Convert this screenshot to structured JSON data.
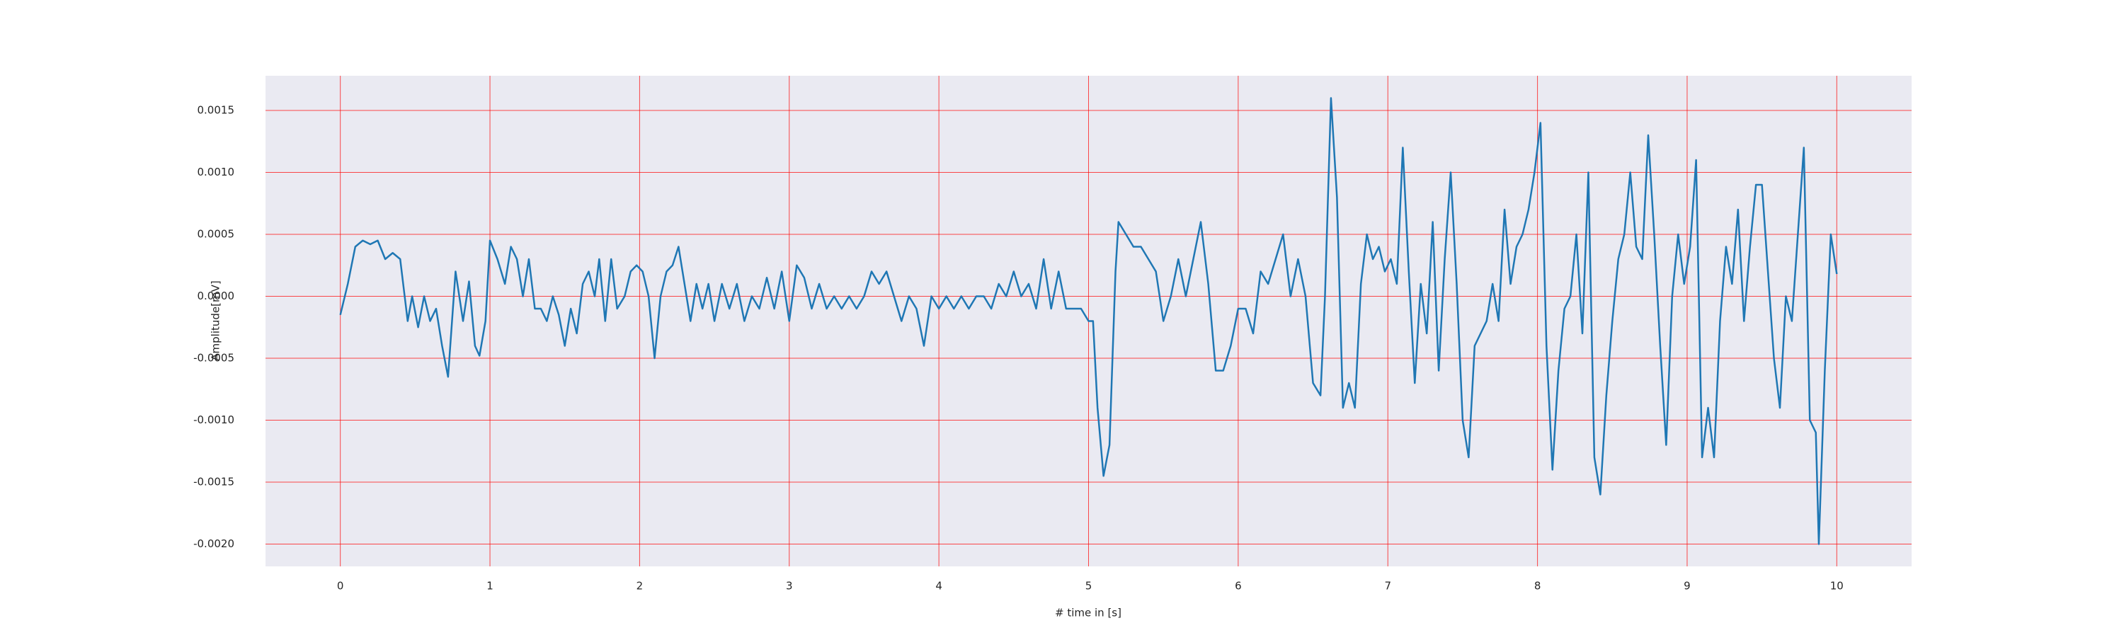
{
  "chart_data": {
    "type": "line",
    "xlabel": "# time in [s]",
    "ylabel": "Amplitude[mV]",
    "color": "#1f77b4",
    "grid": true,
    "grid_color": "#ff0000",
    "background": "#eaeaf2",
    "xlim": [
      -0.5,
      10.5
    ],
    "ylim": [
      -0.00218,
      0.00178
    ],
    "xticks": [
      0,
      1,
      2,
      3,
      4,
      5,
      6,
      7,
      8,
      9,
      10
    ],
    "yticks": [
      {
        "value": 0.0015,
        "label": "0.0015"
      },
      {
        "value": 0.001,
        "label": "0.0010"
      },
      {
        "value": 0.0005,
        "label": "0.0005"
      },
      {
        "value": 0,
        "label": "0.0000"
      },
      {
        "value": -0.0005,
        "label": "-0.0005"
      },
      {
        "value": -0.001,
        "label": "-0.0010"
      },
      {
        "value": -0.0015,
        "label": "-0.0015"
      },
      {
        "value": -0.002,
        "label": "-0.0020"
      }
    ],
    "x": [
      0,
      0.05,
      0.1,
      0.15,
      0.2,
      0.25,
      0.3,
      0.35,
      0.4,
      0.45,
      0.48,
      0.52,
      0.56,
      0.6,
      0.64,
      0.68,
      0.72,
      0.77,
      0.82,
      0.86,
      0.9,
      0.93,
      0.97,
      1.0,
      1.05,
      1.1,
      1.14,
      1.18,
      1.22,
      1.26,
      1.3,
      1.34,
      1.38,
      1.42,
      1.46,
      1.5,
      1.54,
      1.58,
      1.62,
      1.66,
      1.7,
      1.73,
      1.77,
      1.81,
      1.85,
      1.9,
      1.94,
      1.98,
      2.02,
      2.06,
      2.1,
      2.14,
      2.18,
      2.22,
      2.26,
      2.3,
      2.34,
      2.38,
      2.42,
      2.46,
      2.5,
      2.55,
      2.6,
      2.65,
      2.7,
      2.75,
      2.8,
      2.85,
      2.9,
      2.95,
      3.0,
      3.05,
      3.1,
      3.15,
      3.2,
      3.25,
      3.3,
      3.35,
      3.4,
      3.45,
      3.5,
      3.55,
      3.6,
      3.65,
      3.7,
      3.75,
      3.8,
      3.85,
      3.9,
      3.95,
      4.0,
      4.05,
      4.1,
      4.15,
      4.2,
      4.25,
      4.3,
      4.35,
      4.4,
      4.45,
      4.5,
      4.55,
      4.6,
      4.65,
      4.7,
      4.75,
      4.8,
      4.85,
      4.9,
      4.95,
      5.0,
      5.03,
      5.06,
      5.1,
      5.14,
      5.18,
      5.2,
      5.25,
      5.3,
      5.35,
      5.4,
      5.45,
      5.5,
      5.55,
      5.6,
      5.65,
      5.7,
      5.75,
      5.8,
      5.85,
      5.9,
      5.95,
      6.0,
      6.05,
      6.1,
      6.15,
      6.2,
      6.25,
      6.3,
      6.35,
      6.4,
      6.45,
      6.5,
      6.55,
      6.58,
      6.62,
      6.66,
      6.7,
      6.74,
      6.78,
      6.82,
      6.86,
      6.9,
      6.94,
      6.98,
      7.02,
      7.06,
      7.1,
      7.14,
      7.18,
      7.22,
      7.26,
      7.3,
      7.34,
      7.38,
      7.42,
      7.46,
      7.5,
      7.54,
      7.58,
      7.62,
      7.66,
      7.7,
      7.74,
      7.78,
      7.82,
      7.86,
      7.9,
      7.94,
      7.98,
      8.02,
      8.06,
      8.1,
      8.14,
      8.18,
      8.22,
      8.26,
      8.3,
      8.34,
      8.38,
      8.42,
      8.46,
      8.5,
      8.54,
      8.58,
      8.62,
      8.66,
      8.7,
      8.74,
      8.78,
      8.82,
      8.86,
      8.9,
      8.94,
      8.98,
      9.02,
      9.06,
      9.1,
      9.14,
      9.18,
      9.22,
      9.26,
      9.3,
      9.34,
      9.38,
      9.42,
      9.46,
      9.5,
      9.54,
      9.58,
      9.62,
      9.66,
      9.7,
      9.74,
      9.78,
      9.82,
      9.86,
      9.88,
      9.92,
      9.96,
      10.0
    ],
    "values": [
      -0.00015,
      0.0001,
      0.0004,
      0.00045,
      0.00042,
      0.00045,
      0.0003,
      0.00035,
      0.0003,
      -0.0002,
      0,
      -0.00025,
      0,
      -0.0002,
      -0.0001,
      -0.0004,
      -0.00065,
      0.0002,
      -0.0002,
      0.00012,
      -0.0004,
      -0.00048,
      -0.0002,
      0.00045,
      0.0003,
      0.0001,
      0.0004,
      0.0003,
      0,
      0.0003,
      -0.0001,
      -0.0001,
      -0.0002,
      0,
      -0.00015,
      -0.0004,
      -0.0001,
      -0.0003,
      0.0001,
      0.0002,
      0,
      0.0003,
      -0.0002,
      0.0003,
      -0.0001,
      0,
      0.0002,
      0.00025,
      0.0002,
      0,
      -0.0005,
      0,
      0.0002,
      0.00025,
      0.0004,
      0.0001,
      -0.0002,
      0.0001,
      -0.0001,
      0.0001,
      -0.0002,
      0.0001,
      -0.0001,
      0.0001,
      -0.0002,
      0,
      -0.0001,
      0.00015,
      -0.0001,
      0.0002,
      -0.0002,
      0.00025,
      0.00015,
      -0.0001,
      0.0001,
      -0.0001,
      0,
      -0.0001,
      0,
      -0.0001,
      0,
      0.0002,
      0.0001,
      0.0002,
      0,
      -0.0002,
      0,
      -0.0001,
      -0.0004,
      0,
      -0.0001,
      0,
      -0.0001,
      0,
      -0.0001,
      0,
      0,
      -0.0001,
      0.0001,
      0,
      0.0002,
      0,
      0.0001,
      -0.0001,
      0.0003,
      -0.0001,
      0.0002,
      -0.0001,
      -0.0001,
      -0.0001,
      -0.0002,
      -0.0002,
      -0.0009,
      -0.00145,
      -0.0012,
      0.0002,
      0.0006,
      0.0005,
      0.0004,
      0.0004,
      0.0003,
      0.0002,
      -0.0002,
      0,
      0.0003,
      0,
      0.0003,
      0.0006,
      0.0001,
      -0.0006,
      -0.0006,
      -0.0004,
      -0.0001,
      -0.0001,
      -0.0003,
      0.0002,
      0.0001,
      0.0003,
      0.0005,
      0,
      0.0003,
      0,
      -0.0007,
      -0.0008,
      0,
      0.0016,
      0.0008,
      -0.0009,
      -0.0007,
      -0.0009,
      0.0001,
      0.0005,
      0.0003,
      0.0004,
      0.0002,
      0.0003,
      0.0001,
      0.0012,
      0.0002,
      -0.0007,
      0.0001,
      -0.0003,
      0.0006,
      -0.0006,
      0.0003,
      0.001,
      0.0001,
      -0.001,
      -0.0013,
      -0.0004,
      -0.0003,
      -0.0002,
      0.0001,
      -0.0002,
      0.0007,
      0.0001,
      0.0004,
      0.0005,
      0.0007,
      0.001,
      0.0014,
      -0.0004,
      -0.0014,
      -0.0006,
      -0.0001,
      0,
      0.0005,
      -0.0003,
      0.001,
      -0.0013,
      -0.0016,
      -0.0008,
      -0.0002,
      0.0003,
      0.0005,
      0.001,
      0.0004,
      0.0003,
      0.0013,
      0.0005,
      -0.0004,
      -0.0012,
      0,
      0.0005,
      0.0001,
      0.0004,
      0.0011,
      -0.0013,
      -0.0009,
      -0.0013,
      -0.0002,
      0.0004,
      0.0001,
      0.0007,
      -0.0002,
      0.0004,
      0.0009,
      0.0009,
      0.0002,
      -0.0005,
      -0.0009,
      0,
      -0.0002,
      0.0005,
      0.0012,
      -0.001,
      -0.0011,
      -0.002,
      -0.0006,
      0.0005,
      0.00018
    ]
  }
}
